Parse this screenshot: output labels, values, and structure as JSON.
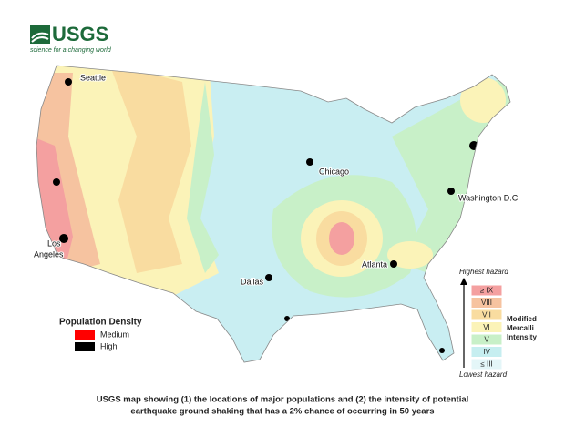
{
  "header": {
    "logo": "USGS",
    "tagline": "science for a changing world"
  },
  "cities": [
    {
      "lines": [
        "Seattle"
      ]
    },
    {
      "lines": [
        "Chicago"
      ]
    },
    {
      "lines": [
        "Washington D.C."
      ]
    },
    {
      "lines": [
        "Los",
        "Angeles"
      ]
    },
    {
      "lines": [
        "Dallas"
      ]
    },
    {
      "lines": [
        "Atlanta"
      ]
    }
  ],
  "population_legend": {
    "title": "Population Density",
    "items": [
      {
        "label": "Medium",
        "color": "#ff0000"
      },
      {
        "label": "High",
        "color": "#000000"
      }
    ]
  },
  "hazard_scale": {
    "top_label": "Highest hazard",
    "bottom_label": "Lowest hazard",
    "title_lines": [
      "Modified",
      "Mercalli",
      "Intensity"
    ],
    "levels": [
      {
        "label": "≥ IX",
        "color": "#f4a0a0"
      },
      {
        "label": "VIII",
        "color": "#f6c3a0"
      },
      {
        "label": "VII",
        "color": "#f9dca0"
      },
      {
        "label": "VI",
        "color": "#fbf3b8"
      },
      {
        "label": "V",
        "color": "#c8f0c8"
      },
      {
        "label": "IV",
        "color": "#c6eef0"
      },
      {
        "label": "≤ III",
        "color": "#e4f6f8"
      }
    ]
  },
  "caption": [
    "USGS map showing (1) the locations of major populations and (2) the intensity of potential",
    "earthquake ground shaking that has a 2% chance of occurring in 50 years"
  ]
}
